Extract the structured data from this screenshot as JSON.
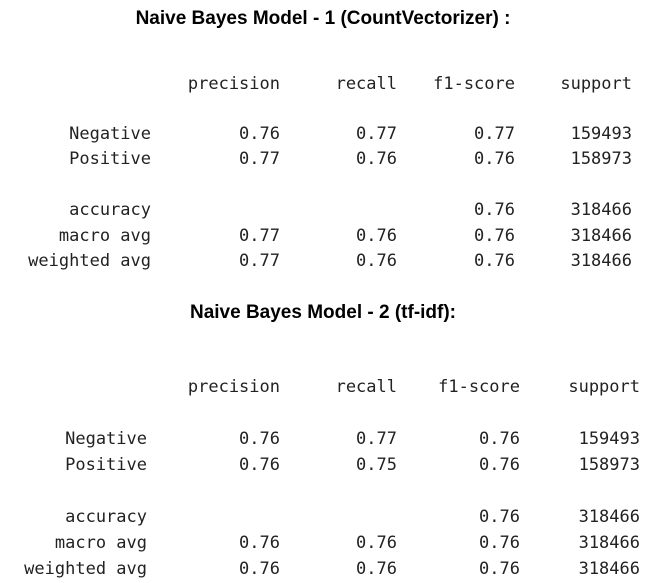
{
  "reports": [
    {
      "title": "Naive Bayes Model - 1 (CountVectorizer) :",
      "headers": [
        "precision",
        "recall",
        "f1-score",
        "support"
      ],
      "rows": [
        {
          "label": "Negative",
          "precision": "0.76",
          "recall": "0.77",
          "f1": "0.77",
          "support": "159493"
        },
        {
          "label": "Positive",
          "precision": "0.77",
          "recall": "0.76",
          "f1": "0.76",
          "support": "158973"
        },
        {
          "label": "accuracy",
          "precision": "",
          "recall": "",
          "f1": "0.76",
          "support": "318466"
        },
        {
          "label": "macro avg",
          "precision": "0.77",
          "recall": "0.76",
          "f1": "0.76",
          "support": "318466"
        },
        {
          "label": "weighted avg",
          "precision": "0.77",
          "recall": "0.76",
          "f1": "0.76",
          "support": "318466"
        }
      ]
    },
    {
      "title": "Naive Bayes Model - 2 (tf-idf):",
      "headers": [
        "precision",
        "recall",
        "f1-score",
        "support"
      ],
      "rows": [
        {
          "label": "Negative",
          "precision": "0.76",
          "recall": "0.77",
          "f1": "0.76",
          "support": "159493"
        },
        {
          "label": "Positive",
          "precision": "0.76",
          "recall": "0.75",
          "f1": "0.76",
          "support": "158973"
        },
        {
          "label": "accuracy",
          "precision": "",
          "recall": "",
          "f1": "0.76",
          "support": "318466"
        },
        {
          "label": "macro avg",
          "precision": "0.76",
          "recall": "0.76",
          "f1": "0.76",
          "support": "318466"
        },
        {
          "label": "weighted avg",
          "precision": "0.76",
          "recall": "0.76",
          "f1": "0.76",
          "support": "318466"
        }
      ]
    }
  ]
}
